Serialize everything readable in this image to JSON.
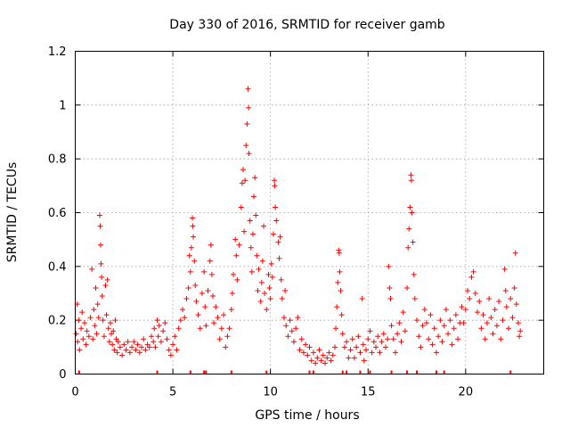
{
  "chart_data": {
    "type": "scatter",
    "title": "Day 330 of 2016, SRMTID for receiver gamb",
    "xlabel": "GPS time / hours",
    "ylabel": "SRMTID / TECUs",
    "xlim": [
      0,
      24
    ],
    "ylim": [
      0,
      1.2
    ],
    "xticks": [
      0,
      5,
      10,
      15,
      20
    ],
    "xtick_labels": [
      "0",
      "5",
      "10",
      "15",
      "20"
    ],
    "yticks": [
      0,
      0.2,
      0.4,
      0.6,
      0.8,
      1.0,
      1.2
    ],
    "ytick_labels": [
      "0",
      "0.2",
      "0.4",
      "0.6",
      "0.8",
      "1",
      "1.2"
    ],
    "grid": true,
    "marker": "+",
    "color": "#ff0000",
    "series": [
      {
        "name": "SRMTID",
        "points": [
          [
            0.05,
            0.15
          ],
          [
            0.1,
            0.26
          ],
          [
            0.12,
            0.12
          ],
          [
            0.18,
            0.2
          ],
          [
            0.22,
            0.09
          ],
          [
            0.3,
            0.17
          ],
          [
            0.35,
            0.23
          ],
          [
            0.4,
            0.13
          ],
          [
            0.48,
            0.19
          ],
          [
            0.55,
            0.11
          ],
          [
            0.6,
            0.16
          ],
          [
            0.7,
            0.14
          ],
          [
            0.78,
            0.21
          ],
          [
            0.85,
            0.39
          ],
          [
            0.9,
            0.13
          ],
          [
            0.95,
            0.24
          ],
          [
            1.0,
            0.18
          ],
          [
            1.05,
            0.32
          ],
          [
            1.1,
            0.15
          ],
          [
            1.15,
            0.26
          ],
          [
            1.2,
            0.21
          ],
          [
            1.25,
            0.59
          ],
          [
            1.28,
            0.55
          ],
          [
            1.3,
            0.48
          ],
          [
            1.32,
            0.41
          ],
          [
            1.35,
            0.36
          ],
          [
            1.38,
            0.29
          ],
          [
            1.42,
            0.2
          ],
          [
            1.48,
            0.14
          ],
          [
            1.55,
            0.33
          ],
          [
            1.6,
            0.22
          ],
          [
            1.65,
            0.35
          ],
          [
            1.7,
            0.17
          ],
          [
            1.75,
            0.12
          ],
          [
            1.8,
            0.19
          ],
          [
            1.85,
            0.15
          ],
          [
            1.9,
            0.11
          ],
          [
            1.95,
            0.16
          ],
          [
            2.0,
            0.09
          ],
          [
            2.05,
            0.2
          ],
          [
            2.1,
            0.13
          ],
          [
            2.15,
            0.08
          ],
          [
            2.2,
            0.12
          ],
          [
            2.3,
            0.1
          ],
          [
            2.4,
            0.07
          ],
          [
            2.5,
            0.11
          ],
          [
            2.6,
            0.09
          ],
          [
            2.7,
            0.12
          ],
          [
            2.8,
            0.08
          ],
          [
            2.9,
            0.1
          ],
          [
            3.0,
            0.12
          ],
          [
            3.1,
            0.09
          ],
          [
            3.2,
            0.11
          ],
          [
            3.3,
            0.08
          ],
          [
            3.4,
            0.1
          ],
          [
            3.5,
            0.13
          ],
          [
            3.6,
            0.09
          ],
          [
            3.7,
            0.11
          ],
          [
            3.8,
            0.1
          ],
          [
            3.9,
            0.14
          ],
          [
            4.0,
            0.12
          ],
          [
            4.05,
            0.17
          ],
          [
            4.1,
            0.1
          ],
          [
            4.2,
            0.2
          ],
          [
            4.25,
            0.14
          ],
          [
            4.3,
            0.18
          ],
          [
            4.4,
            0.12
          ],
          [
            4.5,
            0.16
          ],
          [
            4.6,
            0.19
          ],
          [
            4.7,
            0.13
          ],
          [
            4.8,
            0.09
          ],
          [
            4.9,
            0.07
          ],
          [
            5.0,
            0.11
          ],
          [
            5.1,
            0.14
          ],
          [
            5.2,
            0.09
          ],
          [
            5.3,
            0.17
          ],
          [
            5.4,
            0.2
          ],
          [
            5.5,
            0.24
          ],
          [
            5.6,
            0.21
          ],
          [
            5.7,
            0.28
          ],
          [
            5.8,
            0.32
          ],
          [
            5.85,
            0.44
          ],
          [
            5.9,
            0.38
          ],
          [
            5.95,
            0.47
          ],
          [
            6.0,
            0.58
          ],
          [
            6.02,
            0.55
          ],
          [
            6.05,
            0.51
          ],
          [
            6.1,
            0.42
          ],
          [
            6.15,
            0.33
          ],
          [
            6.2,
            0.27
          ],
          [
            6.3,
            0.22
          ],
          [
            6.4,
            0.17
          ],
          [
            6.5,
            0.3
          ],
          [
            6.6,
            0.38
          ],
          [
            6.65,
            0.25
          ],
          [
            6.7,
            0.18
          ],
          [
            6.8,
            0.31
          ],
          [
            6.9,
            0.42
          ],
          [
            6.95,
            0.48
          ],
          [
            7.0,
            0.37
          ],
          [
            7.05,
            0.29
          ],
          [
            7.1,
            0.19
          ],
          [
            7.2,
            0.25
          ],
          [
            7.3,
            0.21
          ],
          [
            7.4,
            0.13
          ],
          [
            7.5,
            0.17
          ],
          [
            7.6,
            0.22
          ],
          [
            7.7,
            0.1
          ],
          [
            7.8,
            0.14
          ],
          [
            7.9,
            0.17
          ],
          [
            8.0,
            0.24
          ],
          [
            8.05,
            0.3
          ],
          [
            8.1,
            0.37
          ],
          [
            8.2,
            0.5
          ],
          [
            8.25,
            0.44
          ],
          [
            8.3,
            0.35
          ],
          [
            8.4,
            0.48
          ],
          [
            8.5,
            0.62
          ],
          [
            8.55,
            0.71
          ],
          [
            8.6,
            0.76
          ],
          [
            8.65,
            0.53
          ],
          [
            8.7,
            0.72
          ],
          [
            8.75,
            0.85
          ],
          [
            8.8,
            0.93
          ],
          [
            8.85,
            1.06
          ],
          [
            8.88,
            0.99
          ],
          [
            8.9,
            0.82
          ],
          [
            8.95,
            0.57
          ],
          [
            9.0,
            0.47
          ],
          [
            9.05,
            0.38
          ],
          [
            9.1,
            0.52
          ],
          [
            9.15,
            0.66
          ],
          [
            9.2,
            0.73
          ],
          [
            9.25,
            0.59
          ],
          [
            9.3,
            0.44
          ],
          [
            9.35,
            0.31
          ],
          [
            9.4,
            0.39
          ],
          [
            9.5,
            0.27
          ],
          [
            9.55,
            0.34
          ],
          [
            9.6,
            0.42
          ],
          [
            9.65,
            0.55
          ],
          [
            9.7,
            0.3
          ],
          [
            9.8,
            0.24
          ],
          [
            9.9,
            0.37
          ],
          [
            9.95,
            0.32
          ],
          [
            10.0,
            0.28
          ],
          [
            10.05,
            0.41
          ],
          [
            10.1,
            0.36
          ],
          [
            10.15,
            0.52
          ],
          [
            10.2,
            0.72
          ],
          [
            10.22,
            0.7
          ],
          [
            10.25,
            0.62
          ],
          [
            10.3,
            0.57
          ],
          [
            10.4,
            0.49
          ],
          [
            10.45,
            0.43
          ],
          [
            10.5,
            0.51
          ],
          [
            10.55,
            0.35
          ],
          [
            10.6,
            0.28
          ],
          [
            10.7,
            0.21
          ],
          [
            10.75,
            0.31
          ],
          [
            10.8,
            0.18
          ],
          [
            10.9,
            0.14
          ],
          [
            11.0,
            0.2
          ],
          [
            11.1,
            0.16
          ],
          [
            11.2,
            0.12
          ],
          [
            11.3,
            0.17
          ],
          [
            11.4,
            0.21
          ],
          [
            11.5,
            0.09
          ],
          [
            11.6,
            0.13
          ],
          [
            11.7,
            0.08
          ],
          [
            11.8,
            0.11
          ],
          [
            11.9,
            0.07
          ],
          [
            12.0,
            0.1
          ],
          [
            12.1,
            0.05
          ],
          [
            12.2,
            0.08
          ],
          [
            12.3,
            0.04
          ],
          [
            12.4,
            0.06
          ],
          [
            12.5,
            0.09
          ],
          [
            12.6,
            0.05
          ],
          [
            12.7,
            0.07
          ],
          [
            12.8,
            0.04
          ],
          [
            12.9,
            0.06
          ],
          [
            13.0,
            0.08
          ],
          [
            13.1,
            0.05
          ],
          [
            13.2,
            0.07
          ],
          [
            13.3,
            0.1
          ],
          [
            13.35,
            0.17
          ],
          [
            13.4,
            0.25
          ],
          [
            13.45,
            0.34
          ],
          [
            13.5,
            0.46
          ],
          [
            13.52,
            0.45
          ],
          [
            13.55,
            0.38
          ],
          [
            13.6,
            0.31
          ],
          [
            13.65,
            0.22
          ],
          [
            13.7,
            0.15
          ],
          [
            13.8,
            0.1
          ],
          [
            13.9,
            0.12
          ],
          [
            14.0,
            0.06
          ],
          [
            14.1,
            0.09
          ],
          [
            14.2,
            0.13
          ],
          [
            14.3,
            0.06
          ],
          [
            14.4,
            0.1
          ],
          [
            14.5,
            0.14
          ],
          [
            14.6,
            0.08
          ],
          [
            14.7,
            0.28
          ],
          [
            14.75,
            0.11
          ],
          [
            14.8,
            0.05
          ],
          [
            14.9,
            0.09
          ],
          [
            15.0,
            0.13
          ],
          [
            15.1,
            0.16
          ],
          [
            15.2,
            0.08
          ],
          [
            15.3,
            0.12
          ],
          [
            15.4,
            0.1
          ],
          [
            15.5,
            0.14
          ],
          [
            15.6,
            0.08
          ],
          [
            15.7,
            0.12
          ],
          [
            15.8,
            0.15
          ],
          [
            15.9,
            0.1
          ],
          [
            16.0,
            0.13
          ],
          [
            16.05,
            0.4
          ],
          [
            16.1,
            0.32
          ],
          [
            16.15,
            0.28
          ],
          [
            16.2,
            0.18
          ],
          [
            16.3,
            0.13
          ],
          [
            16.4,
            0.08
          ],
          [
            16.5,
            0.15
          ],
          [
            16.6,
            0.19
          ],
          [
            16.7,
            0.12
          ],
          [
            16.8,
            0.23
          ],
          [
            16.9,
            0.16
          ],
          [
            17.0,
            0.32
          ],
          [
            17.05,
            0.47
          ],
          [
            17.1,
            0.54
          ],
          [
            17.15,
            0.62
          ],
          [
            17.2,
            0.74
          ],
          [
            17.22,
            0.72
          ],
          [
            17.25,
            0.6
          ],
          [
            17.3,
            0.49
          ],
          [
            17.35,
            0.37
          ],
          [
            17.4,
            0.28
          ],
          [
            17.5,
            0.2
          ],
          [
            17.6,
            0.14
          ],
          [
            17.7,
            0.1
          ],
          [
            17.8,
            0.18
          ],
          [
            17.9,
            0.24
          ],
          [
            18.0,
            0.19
          ],
          [
            18.1,
            0.13
          ],
          [
            18.2,
            0.22
          ],
          [
            18.3,
            0.11
          ],
          [
            18.4,
            0.17
          ],
          [
            18.5,
            0.08
          ],
          [
            18.6,
            0.14
          ],
          [
            18.7,
            0.2
          ],
          [
            18.8,
            0.12
          ],
          [
            18.9,
            0.18
          ],
          [
            19.0,
            0.24
          ],
          [
            19.1,
            0.15
          ],
          [
            19.2,
            0.2
          ],
          [
            19.3,
            0.11
          ],
          [
            19.4,
            0.17
          ],
          [
            19.5,
            0.22
          ],
          [
            19.6,
            0.13
          ],
          [
            19.7,
            0.19
          ],
          [
            19.8,
            0.25
          ],
          [
            19.9,
            0.19
          ],
          [
            20.0,
            0.24
          ],
          [
            20.1,
            0.31
          ],
          [
            20.2,
            0.28
          ],
          [
            20.3,
            0.36
          ],
          [
            20.4,
            0.38
          ],
          [
            20.5,
            0.3
          ],
          [
            20.6,
            0.23
          ],
          [
            20.7,
            0.27
          ],
          [
            20.8,
            0.17
          ],
          [
            20.9,
            0.22
          ],
          [
            21.0,
            0.13
          ],
          [
            21.1,
            0.19
          ],
          [
            21.2,
            0.28
          ],
          [
            21.3,
            0.21
          ],
          [
            21.4,
            0.15
          ],
          [
            21.5,
            0.24
          ],
          [
            21.6,
            0.18
          ],
          [
            21.7,
            0.27
          ],
          [
            21.8,
            0.13
          ],
          [
            21.9,
            0.2
          ],
          [
            22.0,
            0.39
          ],
          [
            22.05,
            0.31
          ],
          [
            22.1,
            0.25
          ],
          [
            22.2,
            0.17
          ],
          [
            22.3,
            0.28
          ],
          [
            22.4,
            0.21
          ],
          [
            22.5,
            0.32
          ],
          [
            22.55,
            0.45
          ],
          [
            22.6,
            0.26
          ],
          [
            22.7,
            0.19
          ],
          [
            22.75,
            0.14
          ],
          [
            22.8,
            0.16
          ]
        ]
      }
    ],
    "axis_markers_hours": [
      0.2,
      4.2,
      5.9,
      6.6,
      6.7,
      8.0,
      9.8,
      12.0,
      12.2,
      13.7,
      13.9,
      14.6,
      15.1,
      16.2,
      17.0,
      17.5,
      18.5,
      18.9,
      22.3
    ]
  }
}
